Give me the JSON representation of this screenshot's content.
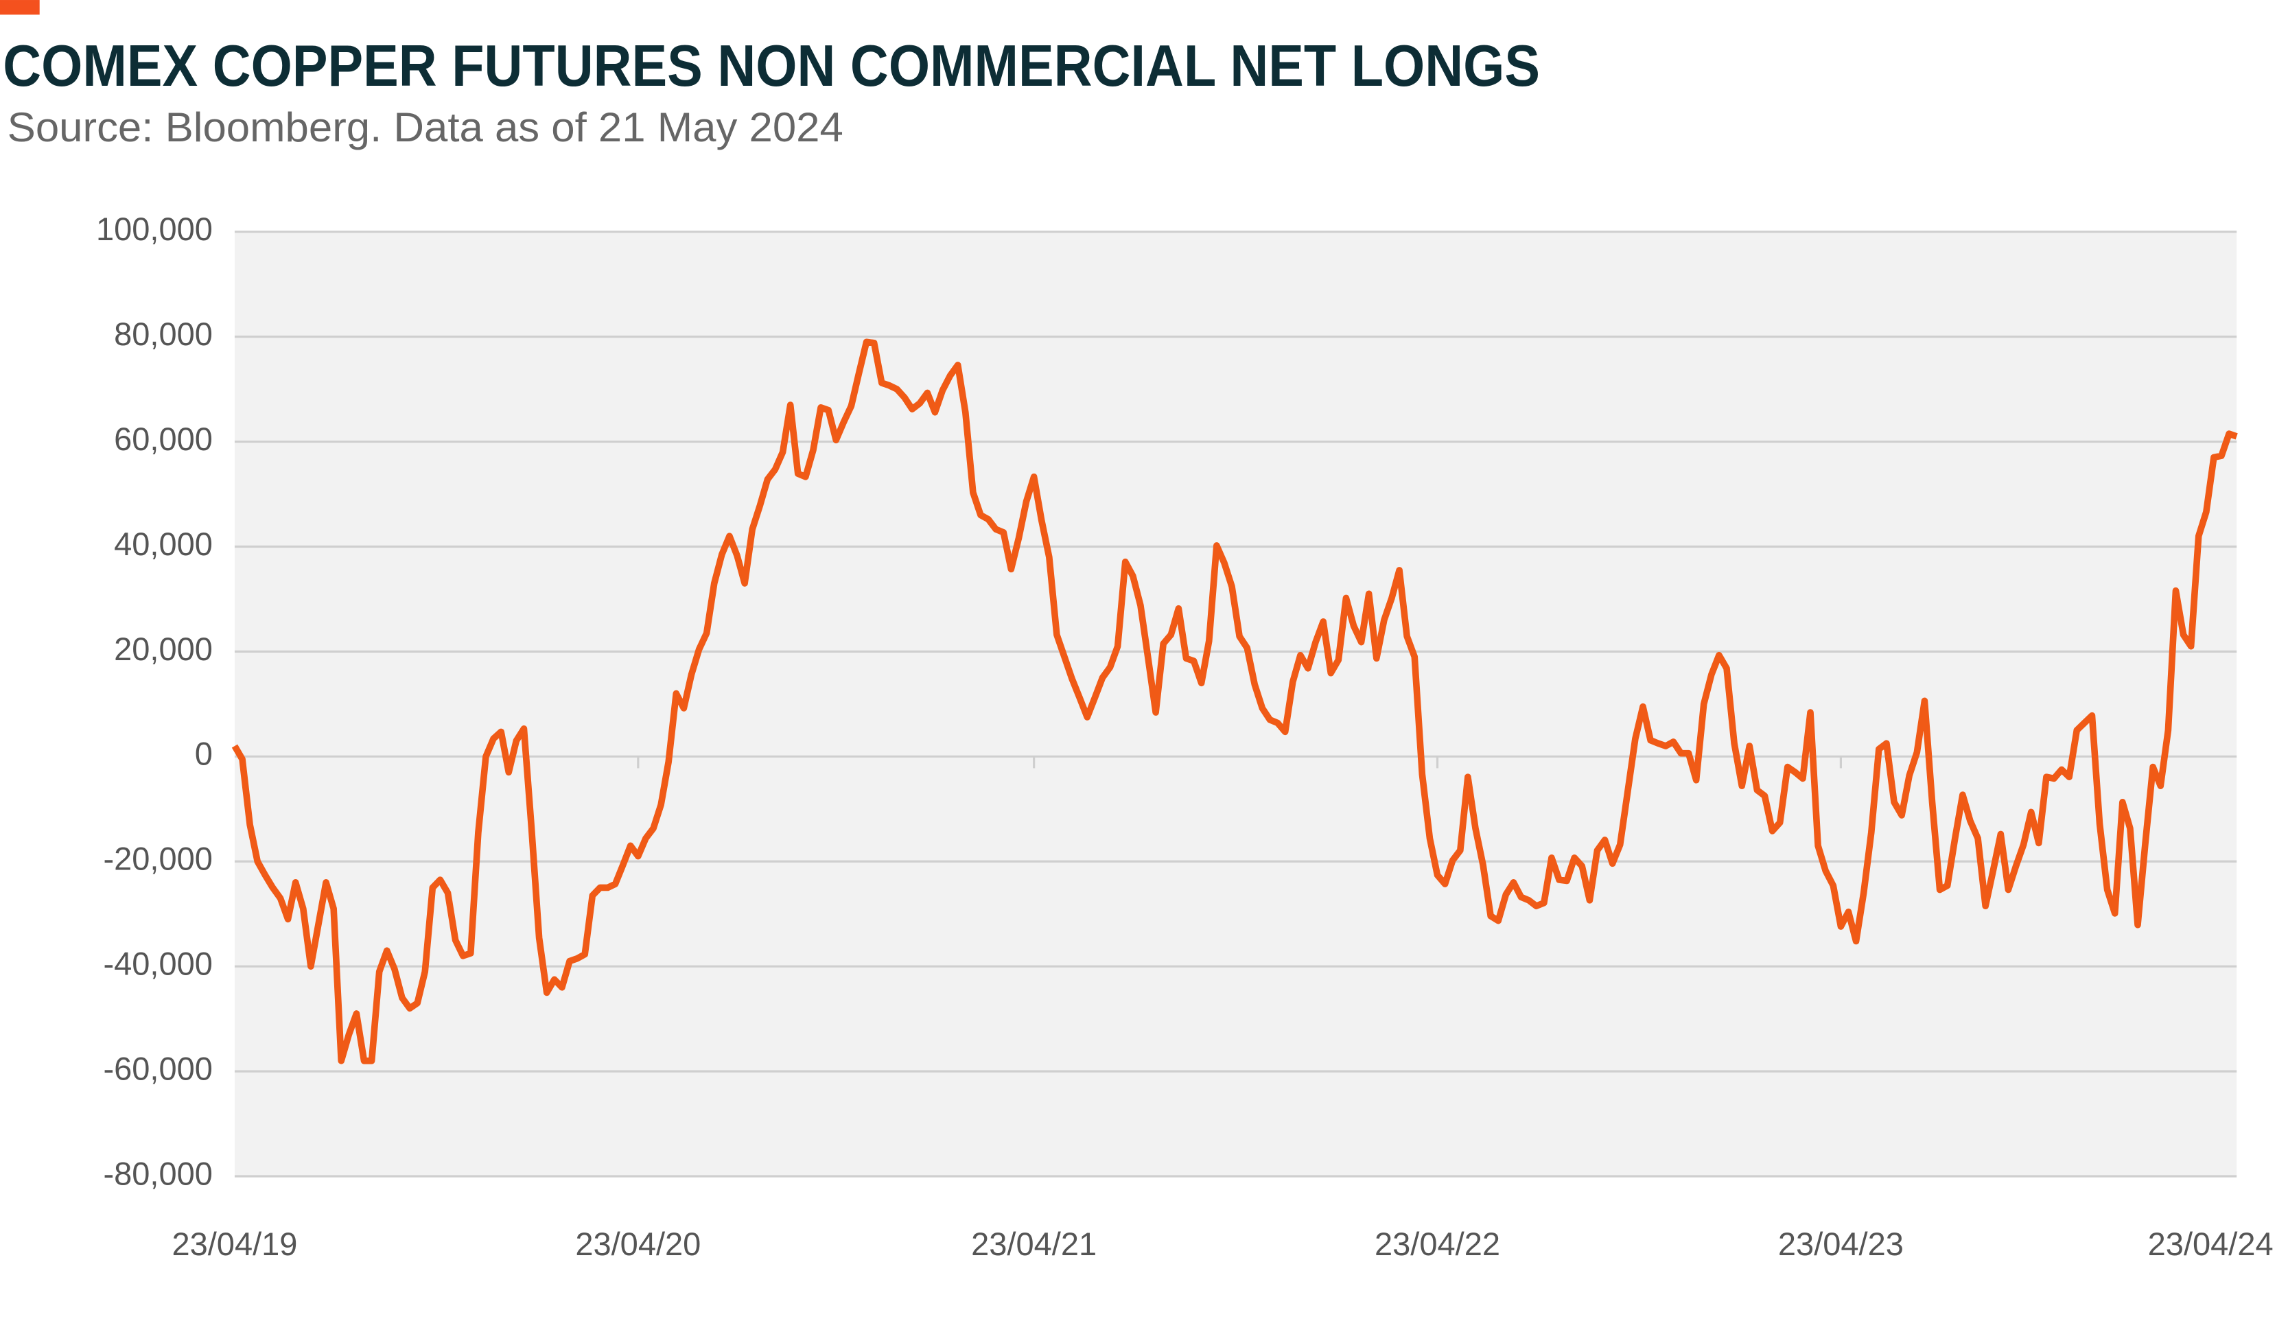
{
  "chart_data": {
    "type": "line",
    "title": "COMEX COPPER FUTURES NON COMMERCIAL NET LONGS",
    "subtitle": "Source: Bloomberg. Data as of 21 May 2024",
    "categories": [
      "23/04/19",
      null,
      null,
      null,
      null,
      null,
      null,
      null,
      null,
      null,
      null,
      null,
      null,
      null,
      null,
      null,
      null,
      null,
      null,
      null,
      null,
      null,
      null,
      null,
      null,
      null,
      null,
      null,
      null,
      null,
      null,
      null,
      null,
      null,
      null,
      null,
      null,
      null,
      null,
      null,
      null,
      null,
      null,
      null,
      null,
      null,
      null,
      null,
      null,
      null,
      null,
      null,
      null,
      "23/04/20",
      null,
      null,
      null,
      null,
      null,
      null,
      null,
      null,
      null,
      null,
      null,
      null,
      null,
      null,
      null,
      null,
      null,
      null,
      null,
      null,
      null,
      null,
      null,
      null,
      null,
      null,
      null,
      null,
      null,
      null,
      null,
      null,
      null,
      null,
      null,
      null,
      null,
      null,
      null,
      null,
      null,
      null,
      null,
      null,
      null,
      null,
      null,
      null,
      null,
      null,
      null,
      "23/04/21",
      null,
      null,
      null,
      null,
      null,
      null,
      null,
      null,
      null,
      null,
      null,
      null,
      null,
      null,
      null,
      null,
      null,
      null,
      null,
      null,
      null,
      null,
      null,
      null,
      null,
      null,
      null,
      null,
      null,
      null,
      null,
      null,
      null,
      null,
      null,
      null,
      null,
      null,
      null,
      null,
      null,
      null,
      null,
      null,
      null,
      null,
      null,
      null,
      null,
      null,
      null,
      null,
      "23/04/22",
      null,
      null,
      null,
      null,
      null,
      null,
      null,
      null,
      null,
      null,
      null,
      null,
      null,
      null,
      null,
      null,
      null,
      null,
      null,
      null,
      null,
      null,
      null,
      null,
      null,
      null,
      null,
      null,
      null,
      null,
      null,
      null,
      null,
      null,
      null,
      null,
      null,
      null,
      null,
      null,
      null,
      null,
      null,
      null,
      null,
      null,
      null,
      null,
      null,
      null,
      null,
      null,
      "23/04/23",
      null,
      null,
      null,
      null,
      null,
      null,
      null,
      null,
      null,
      null,
      null,
      null,
      null,
      null,
      null,
      null,
      null,
      null,
      null,
      null,
      null,
      null,
      null,
      null,
      null,
      null,
      null,
      null,
      null,
      null,
      null,
      null,
      null,
      null,
      null,
      null,
      null,
      null,
      null,
      null,
      null,
      null,
      null,
      null,
      null,
      null,
      null,
      null,
      null,
      null,
      null,
      "23/04/24"
    ],
    "series": [
      {
        "name": "Net longs",
        "color": "#f05a16",
        "values": [
          2000,
          -500,
          -13000,
          -20000,
          -22600,
          -25000,
          -27000,
          -31000,
          -24000,
          -29000,
          -40000,
          -32000,
          -24000,
          -29000,
          -58000,
          -53000,
          -49000,
          -58000,
          -58000,
          -41000,
          -37000,
          -40500,
          -46000,
          -48000,
          -47000,
          -41000,
          -25000,
          -23500,
          -26000,
          -35000,
          -38000,
          -37500,
          -14500,
          0,
          3400,
          4700,
          -3000,
          3000,
          5300,
          -13700,
          -34600,
          -45000,
          -42500,
          -44000,
          -39000,
          -38500,
          -37700,
          -26500,
          -25000,
          -25000,
          -24300,
          -20700,
          -17000,
          -19000,
          -15600,
          -13700,
          -9200,
          -1000,
          12000,
          9200,
          15600,
          20400,
          23500,
          33000,
          38500,
          42000,
          38300,
          33000,
          43300,
          47800,
          52800,
          54700,
          58000,
          67000,
          53900,
          53300,
          58400,
          66500,
          66000,
          60300,
          63700,
          66800,
          73000,
          79000,
          78800,
          71200,
          70700,
          70000,
          68400,
          66200,
          67300,
          69300,
          65600,
          69800,
          72600,
          74600,
          65600,
          50300,
          46000,
          45200,
          43300,
          42700,
          35700,
          41600,
          48600,
          53300,
          45000,
          38000,
          23200,
          19000,
          14800,
          11200,
          7500,
          11200,
          15000,
          17000,
          21000,
          37100,
          34400,
          28800,
          18700,
          8400,
          21500,
          23200,
          28200,
          18700,
          18200,
          14000,
          22000,
          40200,
          36900,
          32400,
          22900,
          20700,
          13700,
          9200,
          7000,
          6400,
          4700,
          14200,
          19300,
          16800,
          21800,
          25700,
          15900,
          18400,
          30200,
          24900,
          21800,
          31000,
          18700,
          26000,
          30200,
          35500,
          22900,
          19000,
          -3400,
          -15600,
          -22600,
          -24300,
          -19800,
          -17900,
          -3900,
          -13700,
          -20700,
          -30400,
          -31300,
          -26300,
          -24000,
          -26800,
          -27400,
          -28500,
          -27900,
          -19300,
          -23500,
          -23700,
          -19300,
          -20900,
          -27400,
          -17900,
          -15900,
          -20400,
          -16800,
          -6700,
          3400,
          9500,
          3100,
          2500,
          2000,
          2800,
          600,
          600,
          -4500,
          10000,
          15600,
          19300,
          16800,
          2500,
          -5600,
          2000,
          -6400,
          -7500,
          -14200,
          -12600,
          -2000,
          -3000,
          -4200,
          8400,
          -17000,
          -21800,
          -24600,
          -32400,
          -29600,
          -35200,
          -26000,
          -14500,
          1400,
          2500,
          -8700,
          -11200,
          -3600,
          800,
          10600,
          -8700,
          -25400,
          -24600,
          -15600,
          -7300,
          -12300,
          -15600,
          -28500,
          -21800,
          -14800,
          -25400,
          -20900,
          -16800,
          -10600,
          -16500,
          -3900,
          -4200,
          -2500,
          -3900,
          5000,
          6400,
          7800,
          -12800,
          -25400,
          -29900,
          -8700,
          -13700,
          -32100,
          -16500,
          -2000,
          -5600,
          5000,
          31600,
          23200,
          21000,
          42000,
          46600,
          57000,
          57300,
          61500,
          61000
        ]
      }
    ],
    "ylim": [
      -80000,
      100000
    ],
    "yticks": [
      {
        "value": -80000,
        "label": "-80,000"
      },
      {
        "value": -60000,
        "label": "-60,000"
      },
      {
        "value": -40000,
        "label": "-40,000"
      },
      {
        "value": -20000,
        "label": "-20,000"
      },
      0,
      {
        "value": 20000,
        "label": "20,000"
      },
      {
        "value": 40000,
        "label": "40,000"
      },
      {
        "value": 60000,
        "label": "60,000"
      },
      {
        "value": 80000,
        "label": "80,000"
      },
      {
        "value": 100000,
        "label": "100,000"
      }
    ],
    "grid": true
  }
}
